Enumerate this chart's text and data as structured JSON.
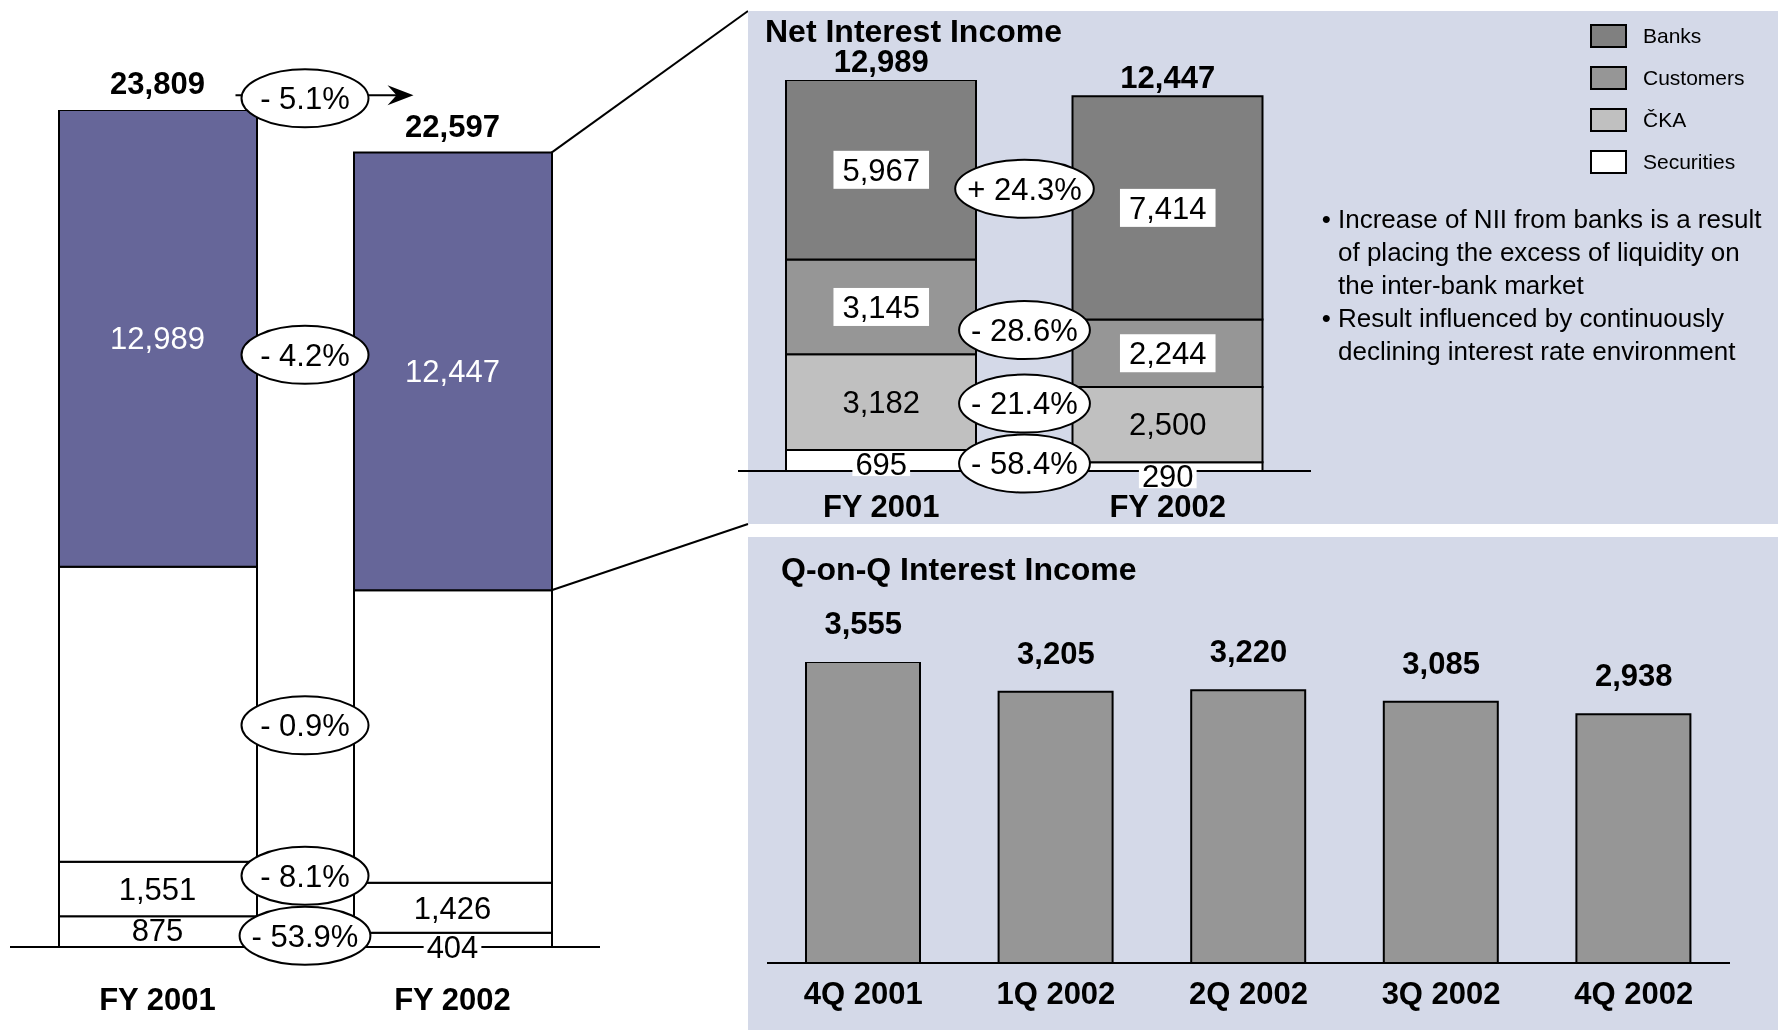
{
  "chart_data": [
    {
      "type": "bar",
      "stacked": true,
      "categories": [
        "FY 2001",
        "FY 2002"
      ],
      "series": [
        {
          "color": "#ffffff",
          "values": [
            875,
            404
          ],
          "value_labels": [
            "875",
            "404"
          ]
        },
        {
          "color": "#ffffff",
          "values": [
            1551,
            1426
          ],
          "value_labels": [
            "1,551",
            "1,426"
          ]
        },
        {
          "color": "#ffffff",
          "values": [
            8394,
            8320
          ],
          "value_labels": [
            null,
            null
          ]
        },
        {
          "color": "#666699",
          "values": [
            12989,
            12447
          ],
          "value_labels": [
            "12,989",
            "12,447"
          ]
        }
      ],
      "totals": [
        "23,809",
        "22,597"
      ],
      "annotations": [
        "- 5.1%",
        "- 4.2%",
        "- 0.9%",
        "- 8.1%",
        "- 53.9%"
      ]
    },
    {
      "type": "bar",
      "stacked": true,
      "title": "Net Interest Income",
      "categories": [
        "FY 2001",
        "FY 2002"
      ],
      "series": [
        {
          "name": "Securities",
          "color": "#ffffff",
          "values": [
            695,
            290
          ],
          "value_labels": [
            "695",
            "290"
          ]
        },
        {
          "name": "ČKA",
          "color": "#c0c0c0",
          "values": [
            3182,
            2500
          ],
          "value_labels": [
            "3,182",
            "2,500"
          ]
        },
        {
          "name": "Customers",
          "color": "#969696",
          "values": [
            3145,
            2244
          ],
          "value_labels": [
            "3,145",
            "2,244"
          ]
        },
        {
          "name": "Banks",
          "color": "#808080",
          "values": [
            5967,
            7414
          ],
          "value_labels": [
            "5,967",
            "7,414"
          ]
        }
      ],
      "totals": [
        "12,989",
        "12,447"
      ],
      "legend": "top right",
      "annotations": [
        "+ 24.3%",
        "- 28.6%",
        "- 21.4%",
        "- 58.4%",
        "• Increase of NII from banks is a result of placing the excess of liquidity on the inter-bank market",
        "• Result influenced by continuously declining interest rate environment"
      ]
    },
    {
      "type": "bar",
      "title": "Q-on-Q Interest Income",
      "categories": [
        "4Q 2001",
        "1Q 2002",
        "2Q 2002",
        "3Q 2002",
        "4Q 2002"
      ],
      "values": [
        3555,
        3205,
        3220,
        3085,
        2938
      ],
      "value_labels": [
        "3,555",
        "3,205",
        "3,220",
        "3,085",
        "2,938"
      ],
      "color": "#969696"
    }
  ]
}
